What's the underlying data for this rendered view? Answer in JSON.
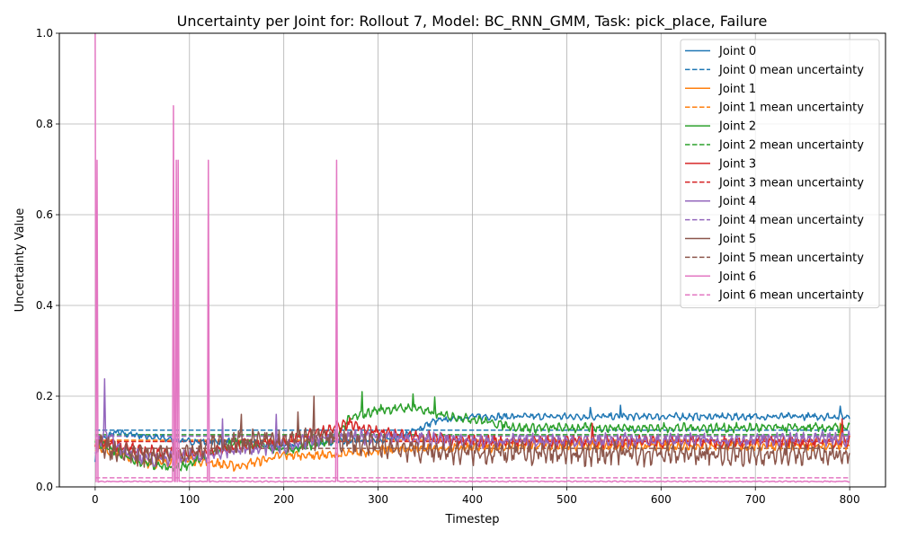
{
  "chart_data": {
    "type": "line",
    "title": "Uncertainty per Joint for: Rollout 7, Model: BC_RNN_GMM, Task: pick_place, Failure",
    "xlabel": "Timestep",
    "ylabel": "Uncertainty Value",
    "xlim": [
      -38,
      838
    ],
    "ylim": [
      0,
      1.0
    ],
    "x_ticks": [
      0,
      100,
      200,
      300,
      400,
      500,
      600,
      700,
      800
    ],
    "y_ticks": [
      0.0,
      0.2,
      0.4,
      0.6,
      0.8,
      1.0
    ],
    "x_tick_labels": [
      "0",
      "100",
      "200",
      "300",
      "400",
      "500",
      "600",
      "700",
      "800"
    ],
    "y_tick_labels": [
      "0.0",
      "0.2",
      "0.4",
      "0.6",
      "0.8",
      "1.0"
    ],
    "grid": true,
    "legend_position": "top-right",
    "n_timesteps": 801,
    "series": [
      {
        "name": "Joint 0",
        "color": "#1f77b4",
        "mean": 0.125,
        "keypoints": [
          [
            0,
            0.06
          ],
          [
            5,
            0.1
          ],
          [
            20,
            0.12
          ],
          [
            60,
            0.11
          ],
          [
            100,
            0.1
          ],
          [
            150,
            0.1
          ],
          [
            200,
            0.09
          ],
          [
            250,
            0.1
          ],
          [
            300,
            0.1
          ],
          [
            330,
            0.115
          ],
          [
            360,
            0.145
          ],
          [
            400,
            0.155
          ],
          [
            450,
            0.155
          ],
          [
            800,
            0.155
          ]
        ],
        "noise": 0.006,
        "spikes": [
          [
            525,
            0.175
          ],
          [
            557,
            0.18
          ],
          [
            790,
            0.178
          ]
        ]
      },
      {
        "name": "Joint 1",
        "color": "#ff7f0e",
        "mean": 0.103,
        "keypoints": [
          [
            0,
            0.09
          ],
          [
            30,
            0.07
          ],
          [
            60,
            0.05
          ],
          [
            100,
            0.06
          ],
          [
            150,
            0.045
          ],
          [
            200,
            0.07
          ],
          [
            250,
            0.07
          ],
          [
            300,
            0.08
          ],
          [
            350,
            0.085
          ],
          [
            400,
            0.085
          ],
          [
            450,
            0.09
          ],
          [
            800,
            0.09
          ]
        ],
        "noise": 0.008,
        "spikes": [
          [
            790,
            0.14
          ]
        ]
      },
      {
        "name": "Joint 2",
        "color": "#2ca02c",
        "mean": 0.115,
        "keypoints": [
          [
            0,
            0.1
          ],
          [
            40,
            0.06
          ],
          [
            80,
            0.04
          ],
          [
            100,
            0.05
          ],
          [
            150,
            0.1
          ],
          [
            200,
            0.08
          ],
          [
            250,
            0.1
          ],
          [
            270,
            0.15
          ],
          [
            285,
            0.16
          ],
          [
            300,
            0.17
          ],
          [
            340,
            0.175
          ],
          [
            360,
            0.16
          ],
          [
            400,
            0.15
          ],
          [
            450,
            0.13
          ],
          [
            800,
            0.13
          ]
        ],
        "noise": 0.008,
        "spikes": [
          [
            283,
            0.21
          ],
          [
            337,
            0.205
          ],
          [
            360,
            0.198
          ]
        ]
      },
      {
        "name": "Joint 3",
        "color": "#d62728",
        "mean": 0.1,
        "keypoints": [
          [
            0,
            0.1
          ],
          [
            50,
            0.08
          ],
          [
            100,
            0.07
          ],
          [
            150,
            0.09
          ],
          [
            200,
            0.1
          ],
          [
            240,
            0.12
          ],
          [
            270,
            0.14
          ],
          [
            300,
            0.12
          ],
          [
            350,
            0.11
          ],
          [
            400,
            0.1
          ],
          [
            800,
            0.1
          ]
        ],
        "noise": 0.01,
        "spikes": [
          [
            527,
            0.14
          ],
          [
            792,
            0.15
          ]
        ]
      },
      {
        "name": "Joint 4",
        "color": "#9467bd",
        "mean": 0.112,
        "keypoints": [
          [
            0,
            0.08
          ],
          [
            10,
            0.12
          ],
          [
            30,
            0.08
          ],
          [
            60,
            0.06
          ],
          [
            100,
            0.065
          ],
          [
            150,
            0.08
          ],
          [
            200,
            0.09
          ],
          [
            250,
            0.11
          ],
          [
            300,
            0.11
          ],
          [
            350,
            0.105
          ],
          [
            400,
            0.1
          ],
          [
            800,
            0.105
          ]
        ],
        "noise": 0.012,
        "spikes": [
          [
            10,
            0.238
          ],
          [
            135,
            0.15
          ],
          [
            192,
            0.16
          ]
        ]
      },
      {
        "name": "Joint 5",
        "color": "#8c564b",
        "mean": 0.085,
        "keypoints": [
          [
            0,
            0.1
          ],
          [
            20,
            0.08
          ],
          [
            60,
            0.07
          ],
          [
            100,
            0.08
          ],
          [
            150,
            0.1
          ],
          [
            200,
            0.1
          ],
          [
            240,
            0.11
          ],
          [
            300,
            0.09
          ],
          [
            350,
            0.08
          ],
          [
            400,
            0.075
          ],
          [
            800,
            0.07
          ]
        ],
        "noise": 0.02,
        "spikes": [
          [
            232,
            0.2
          ],
          [
            155,
            0.16
          ],
          [
            215,
            0.165
          ]
        ]
      },
      {
        "name": "Joint 6",
        "color": "#e377c2",
        "mean": 0.02,
        "keypoints": [
          [
            0,
            0.012
          ],
          [
            800,
            0.012
          ]
        ],
        "noise": 0.001,
        "spikes": [
          [
            0,
            1.0
          ],
          [
            2,
            0.72
          ],
          [
            83,
            0.84
          ],
          [
            86,
            0.72
          ],
          [
            88,
            0.72
          ],
          [
            120,
            0.72
          ],
          [
            256,
            0.72
          ]
        ]
      }
    ],
    "legend_entries": [
      {
        "label": "Joint 0",
        "color": "#1f77b4",
        "dash": false
      },
      {
        "label": "Joint 0 mean uncertainty",
        "color": "#1f77b4",
        "dash": true
      },
      {
        "label": "Joint 1",
        "color": "#ff7f0e",
        "dash": false
      },
      {
        "label": "Joint 1 mean uncertainty",
        "color": "#ff7f0e",
        "dash": true
      },
      {
        "label": "Joint 2",
        "color": "#2ca02c",
        "dash": false
      },
      {
        "label": "Joint 2 mean uncertainty",
        "color": "#2ca02c",
        "dash": true
      },
      {
        "label": "Joint 3",
        "color": "#d62728",
        "dash": false
      },
      {
        "label": "Joint 3 mean uncertainty",
        "color": "#d62728",
        "dash": true
      },
      {
        "label": "Joint 4",
        "color": "#9467bd",
        "dash": false
      },
      {
        "label": "Joint 4 mean uncertainty",
        "color": "#9467bd",
        "dash": true
      },
      {
        "label": "Joint 5",
        "color": "#8c564b",
        "dash": false
      },
      {
        "label": "Joint 5 mean uncertainty",
        "color": "#8c564b",
        "dash": true
      },
      {
        "label": "Joint 6",
        "color": "#e377c2",
        "dash": false
      },
      {
        "label": "Joint 6 mean uncertainty",
        "color": "#e377c2",
        "dash": true
      }
    ]
  }
}
